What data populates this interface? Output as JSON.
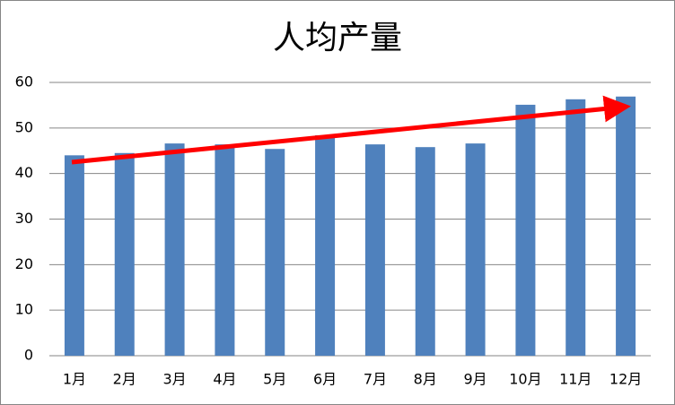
{
  "chart_data": {
    "type": "bar",
    "title": "人均产量",
    "categories": [
      "1月",
      "2月",
      "3月",
      "4月",
      "5月",
      "6月",
      "7月",
      "8月",
      "9月",
      "10月",
      "11月",
      "12月"
    ],
    "values": [
      44,
      44.5,
      46.6,
      46.4,
      45.4,
      48.4,
      46.4,
      45.8,
      46.6,
      55.1,
      56.3,
      56.9
    ],
    "color": "#4f81bd",
    "ylim": [
      0,
      60
    ],
    "yticks": [
      0,
      10,
      20,
      30,
      40,
      50,
      60
    ],
    "grid": true
  }
}
